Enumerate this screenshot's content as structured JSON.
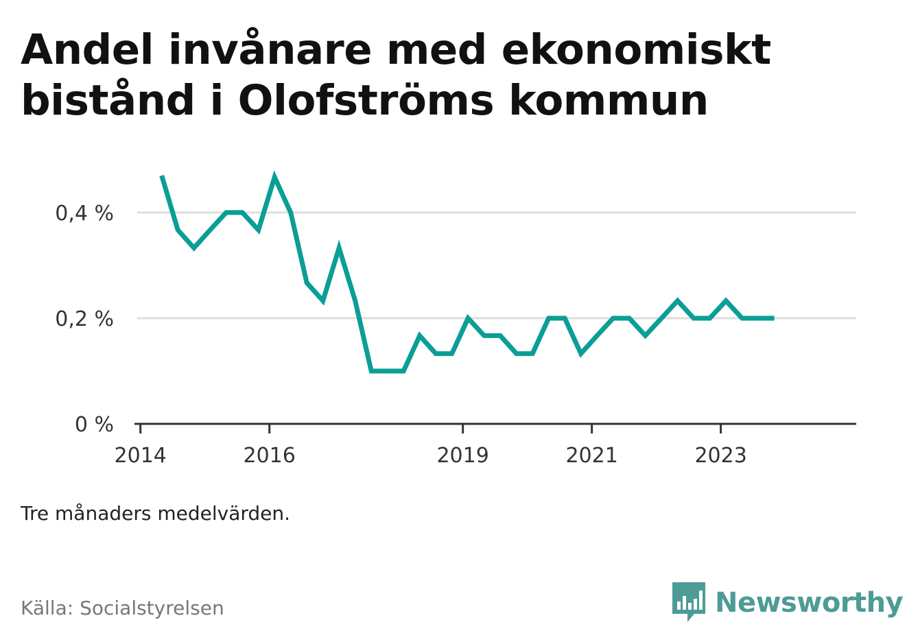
{
  "title": "Andel invånare med ekonomiskt bistånd i Olofströms kommun",
  "note": "Tre månaders medelvärden.",
  "source": "Källa: Socialstyrelsen",
  "brand": {
    "name": "Newsworthy",
    "logo_icon": "bar-chart-speech-bubble-icon"
  },
  "colors": {
    "line": "#0a9e96",
    "grid": "#dddddd",
    "axis": "#333333",
    "brand": "#4d9b96"
  },
  "chart_data": {
    "type": "line",
    "title": "Andel invånare med ekonomiskt bistånd i Olofströms kommun",
    "xlabel": "",
    "ylabel": "",
    "ylim": [
      0,
      0.47
    ],
    "yticks": [
      0,
      0.2,
      0.4
    ],
    "ytick_labels": [
      "0 %",
      "0,2 %",
      "0,4 %"
    ],
    "xticks": [
      2014,
      2016,
      2019,
      2021,
      2023
    ],
    "xtick_labels": [
      "2014",
      "2016",
      "2019",
      "2021",
      "2023"
    ],
    "grid": true,
    "legend": "none",
    "series": [
      {
        "x": [
          2014.33,
          2014.58,
          2014.83,
          2015.08,
          2015.33,
          2015.58,
          2015.83,
          2016.08,
          2016.33,
          2016.58,
          2016.83,
          2017.08,
          2017.33,
          2017.58,
          2017.83,
          2018.08,
          2018.33,
          2018.58,
          2018.83,
          2019.08,
          2019.33,
          2019.58,
          2019.83,
          2020.08,
          2020.33,
          2020.58,
          2020.83,
          2021.08,
          2021.33,
          2021.58,
          2021.83,
          2022.08,
          2022.33,
          2022.58,
          2022.83,
          2023.08,
          2023.33,
          2023.58,
          2023.83
        ],
        "values": [
          0.47,
          0.367,
          0.333,
          0.367,
          0.4,
          0.4,
          0.367,
          0.467,
          0.4,
          0.267,
          0.233,
          0.333,
          0.233,
          0.1,
          0.1,
          0.1,
          0.167,
          0.133,
          0.133,
          0.2,
          0.167,
          0.167,
          0.133,
          0.133,
          0.2,
          0.2,
          0.133,
          0.167,
          0.2,
          0.2,
          0.167,
          0.2,
          0.233,
          0.2,
          0.2,
          0.233,
          0.2,
          0.2,
          0.2
        ]
      }
    ]
  }
}
